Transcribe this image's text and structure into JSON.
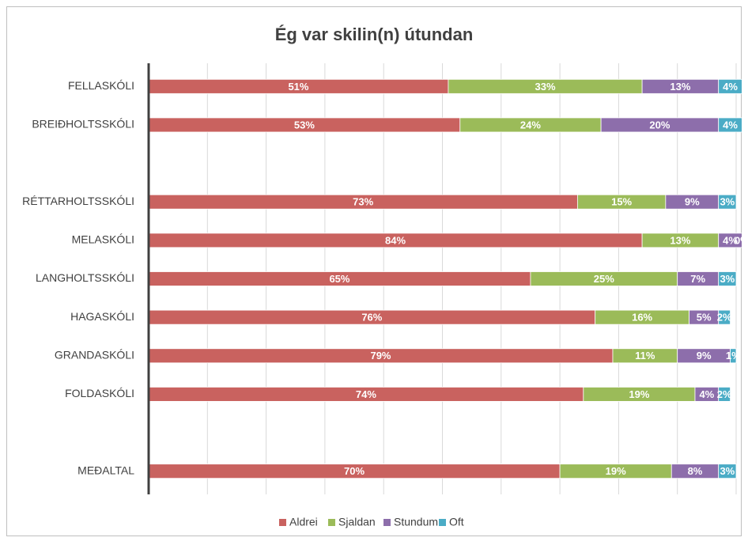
{
  "chart_data": {
    "type": "stacked_barh",
    "title": "Ég var skilin(n) útundan",
    "categories": [
      "FELLASKÓLI",
      "BREIÐHOLTSSKÓLI",
      null,
      "RÉTTARHOLTSSKÓLI",
      "MELASKÓLI",
      "LANGHOLTSSKÓLI",
      "HAGASKÓLI",
      "GRANDASKÓLI",
      "FOLDASKÓLI",
      null,
      "MEÐALTAL"
    ],
    "series": [
      {
        "name": "Aldrei",
        "color": "#c9625f",
        "values": [
          51,
          53,
          null,
          73,
          84,
          65,
          76,
          79,
          74,
          null,
          70
        ],
        "value_labels": [
          "51%",
          "53%",
          null,
          "73%",
          "84%",
          "65%",
          "76%",
          "79%",
          "74%",
          null,
          "70%"
        ]
      },
      {
        "name": "Sjaldan",
        "color": "#9bbb59",
        "values": [
          33,
          24,
          null,
          15,
          13,
          25,
          16,
          11,
          19,
          null,
          19
        ],
        "value_labels": [
          "33%",
          "24%",
          null,
          "15%",
          "13%",
          "25%",
          "16%",
          "11%",
          "19%",
          null,
          "19%"
        ]
      },
      {
        "name": "Stundum",
        "color": "#8d6eab",
        "values": [
          13,
          20,
          null,
          9,
          4,
          7,
          5,
          9,
          4,
          null,
          8
        ],
        "value_labels": [
          "13%",
          "20%",
          null,
          "9%",
          "4%",
          "7%",
          "5%",
          "9%",
          "4%",
          null,
          "8%"
        ]
      },
      {
        "name": "Oft",
        "color": "#4bacc6",
        "values": [
          4,
          4,
          null,
          3,
          0,
          3,
          2,
          1,
          2,
          null,
          3
        ],
        "value_labels": [
          "4%",
          "4%",
          null,
          "3%",
          "0%",
          "3%",
          "2%",
          "1%",
          "2%",
          null,
          "3%"
        ]
      }
    ],
    "xlim": [
      0,
      100
    ],
    "xticks": [
      0,
      10,
      20,
      30,
      40,
      50,
      60,
      70,
      80,
      90,
      100
    ],
    "grid": true,
    "legend": "bottom"
  }
}
